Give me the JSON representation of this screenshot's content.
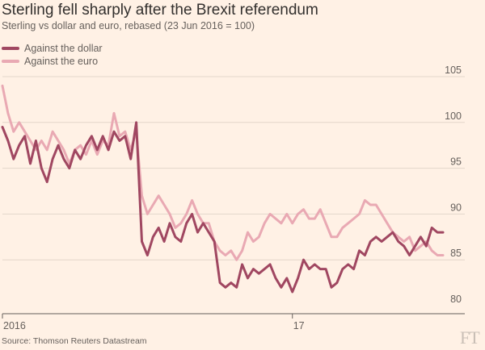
{
  "title": "Sterling fell sharply after the Brexit referendum",
  "subtitle": "Sterling vs dollar and euro, rebased (23 Jun 2016 = 100)",
  "source": "Source: Thomson Reuters Datastream",
  "logo_text": "FT",
  "colors": {
    "background": "#fff1e5",
    "dollar": "#a04761",
    "euro": "#e9a9b3",
    "grid": "#e3d6ca",
    "axis": "#66605c"
  },
  "chart_data": {
    "type": "line",
    "x_unit": "week of 2016-2017",
    "xlim": [
      0,
      79
    ],
    "ylim": [
      80,
      107
    ],
    "y_ticks": [
      80,
      85,
      90,
      95,
      100,
      105
    ],
    "x_ticks": [
      {
        "label": "2016",
        "x": 0
      },
      {
        "label": "17",
        "x": 52
      }
    ],
    "grid": "horizontal",
    "legend_position": "top-left",
    "series": [
      {
        "name": "Against the dollar",
        "color": "#a04761",
        "points": [
          [
            0,
            99.5
          ],
          [
            1,
            98
          ],
          [
            2,
            96
          ],
          [
            3,
            97.5
          ],
          [
            4,
            98.5
          ],
          [
            5,
            95.5
          ],
          [
            6,
            98
          ],
          [
            7,
            95
          ],
          [
            8,
            93.5
          ],
          [
            9,
            96
          ],
          [
            10,
            97.5
          ],
          [
            11,
            96
          ],
          [
            12,
            95
          ],
          [
            13,
            97
          ],
          [
            14,
            96
          ],
          [
            15,
            97.5
          ],
          [
            16,
            98.5
          ],
          [
            17,
            97
          ],
          [
            18,
            98.5
          ],
          [
            19,
            97
          ],
          [
            20,
            99
          ],
          [
            21,
            98
          ],
          [
            22,
            98.5
          ],
          [
            23,
            96
          ],
          [
            24,
            100
          ],
          [
            25,
            87
          ],
          [
            26,
            85.5
          ],
          [
            27,
            87.5
          ],
          [
            28,
            88.5
          ],
          [
            29,
            87
          ],
          [
            30,
            89
          ],
          [
            31,
            87.5
          ],
          [
            32,
            87
          ],
          [
            33,
            89
          ],
          [
            34,
            90
          ],
          [
            35,
            88
          ],
          [
            36,
            89
          ],
          [
            37,
            88
          ],
          [
            38,
            87
          ],
          [
            39,
            82.5
          ],
          [
            40,
            82
          ],
          [
            41,
            82.5
          ],
          [
            42,
            82
          ],
          [
            43,
            84.5
          ],
          [
            44,
            83
          ],
          [
            45,
            84
          ],
          [
            46,
            83.5
          ],
          [
            47,
            84
          ],
          [
            48,
            84.5
          ],
          [
            49,
            83
          ],
          [
            50,
            82
          ],
          [
            51,
            83
          ],
          [
            52,
            81.5
          ],
          [
            53,
            83
          ],
          [
            54,
            85
          ],
          [
            55,
            84
          ],
          [
            56,
            84.5
          ],
          [
            57,
            84
          ],
          [
            58,
            84
          ],
          [
            59,
            82
          ],
          [
            60,
            82.5
          ],
          [
            61,
            84
          ],
          [
            62,
            84.5
          ],
          [
            63,
            84
          ],
          [
            64,
            86
          ],
          [
            65,
            85.5
          ],
          [
            66,
            87
          ],
          [
            67,
            87.5
          ],
          [
            68,
            87
          ],
          [
            69,
            87.5
          ],
          [
            70,
            88
          ],
          [
            71,
            87
          ],
          [
            72,
            86.5
          ],
          [
            73,
            85.5
          ],
          [
            74,
            86.5
          ],
          [
            75,
            87.5
          ],
          [
            76,
            86.5
          ],
          [
            77,
            88.5
          ],
          [
            78,
            88
          ],
          [
            79,
            88
          ]
        ]
      },
      {
        "name": "Against the euro",
        "color": "#e9a9b3",
        "points": [
          [
            0,
            104
          ],
          [
            1,
            101
          ],
          [
            2,
            99
          ],
          [
            3,
            100
          ],
          [
            4,
            99
          ],
          [
            5,
            98
          ],
          [
            6,
            97
          ],
          [
            7,
            98
          ],
          [
            8,
            97
          ],
          [
            9,
            99
          ],
          [
            10,
            98
          ],
          [
            11,
            97
          ],
          [
            12,
            95.5
          ],
          [
            13,
            97
          ],
          [
            14,
            97.5
          ],
          [
            15,
            96.5
          ],
          [
            16,
            98
          ],
          [
            17,
            96.5
          ],
          [
            18,
            98
          ],
          [
            19,
            97.5
          ],
          [
            20,
            101
          ],
          [
            21,
            98.5
          ],
          [
            22,
            99
          ],
          [
            23,
            97
          ],
          [
            24,
            99
          ],
          [
            25,
            92
          ],
          [
            26,
            90
          ],
          [
            27,
            91
          ],
          [
            28,
            92
          ],
          [
            29,
            91
          ],
          [
            30,
            90
          ],
          [
            31,
            88.5
          ],
          [
            32,
            89
          ],
          [
            33,
            90
          ],
          [
            34,
            91.5
          ],
          [
            35,
            90
          ],
          [
            36,
            89
          ],
          [
            37,
            89
          ],
          [
            38,
            87
          ],
          [
            39,
            86
          ],
          [
            40,
            85.5
          ],
          [
            41,
            86
          ],
          [
            42,
            85
          ],
          [
            43,
            86
          ],
          [
            44,
            88
          ],
          [
            45,
            87
          ],
          [
            46,
            87.5
          ],
          [
            47,
            89
          ],
          [
            48,
            90
          ],
          [
            49,
            89.5
          ],
          [
            50,
            89
          ],
          [
            51,
            90
          ],
          [
            52,
            89
          ],
          [
            53,
            90
          ],
          [
            54,
            90.5
          ],
          [
            55,
            89.5
          ],
          [
            56,
            89.5
          ],
          [
            57,
            90.5
          ],
          [
            58,
            89
          ],
          [
            59,
            87.5
          ],
          [
            60,
            87.5
          ],
          [
            61,
            88.5
          ],
          [
            62,
            89
          ],
          [
            63,
            89.5
          ],
          [
            64,
            90
          ],
          [
            65,
            91.5
          ],
          [
            66,
            91
          ],
          [
            67,
            91
          ],
          [
            68,
            90
          ],
          [
            69,
            89
          ],
          [
            70,
            88
          ],
          [
            71,
            87.5
          ],
          [
            72,
            87
          ],
          [
            73,
            87.5
          ],
          [
            74,
            86
          ],
          [
            75,
            86.5
          ],
          [
            76,
            87
          ],
          [
            77,
            86
          ],
          [
            78,
            85.5
          ],
          [
            79,
            85.5
          ]
        ]
      }
    ]
  }
}
